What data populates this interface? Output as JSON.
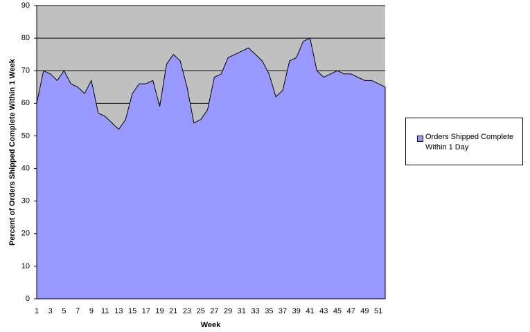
{
  "chart_data": {
    "type": "area",
    "x_label": "Week",
    "y_label": "Percent of Orders Shipped Complete Within 1 Week",
    "categories": [
      "1",
      null,
      "3",
      null,
      "5",
      null,
      "7",
      null,
      "9",
      null,
      "11",
      null,
      "13",
      null,
      "15",
      null,
      "17",
      null,
      "19",
      null,
      "21",
      null,
      "23",
      null,
      "25",
      null,
      "27",
      null,
      "29",
      null,
      "31",
      null,
      "33",
      null,
      "35",
      null,
      "37",
      null,
      "39",
      null,
      "41",
      null,
      "43",
      null,
      "45",
      null,
      "47",
      null,
      "49",
      null,
      "51",
      null
    ],
    "series": [
      {
        "name": "Orders Shipped Complete Within 1 Day",
        "color": "#9999ff",
        "values": [
          60,
          70,
          69,
          67,
          70,
          66,
          65,
          63,
          67,
          57,
          56,
          54,
          52,
          55,
          63,
          66,
          66,
          67,
          59,
          72,
          75,
          73,
          65,
          54,
          55,
          58,
          68,
          69,
          74,
          75,
          76,
          77,
          75,
          73,
          69,
          62,
          64,
          73,
          74,
          79,
          80,
          70,
          68,
          69,
          70,
          69,
          69,
          68,
          67,
          67,
          66,
          65
        ]
      }
    ],
    "ylim": [
      0,
      90
    ],
    "yticks": [
      0,
      10,
      20,
      30,
      40,
      50,
      60,
      70,
      80,
      90
    ],
    "grid": true,
    "plot_background": "#c0c0c0",
    "legend": "right"
  }
}
